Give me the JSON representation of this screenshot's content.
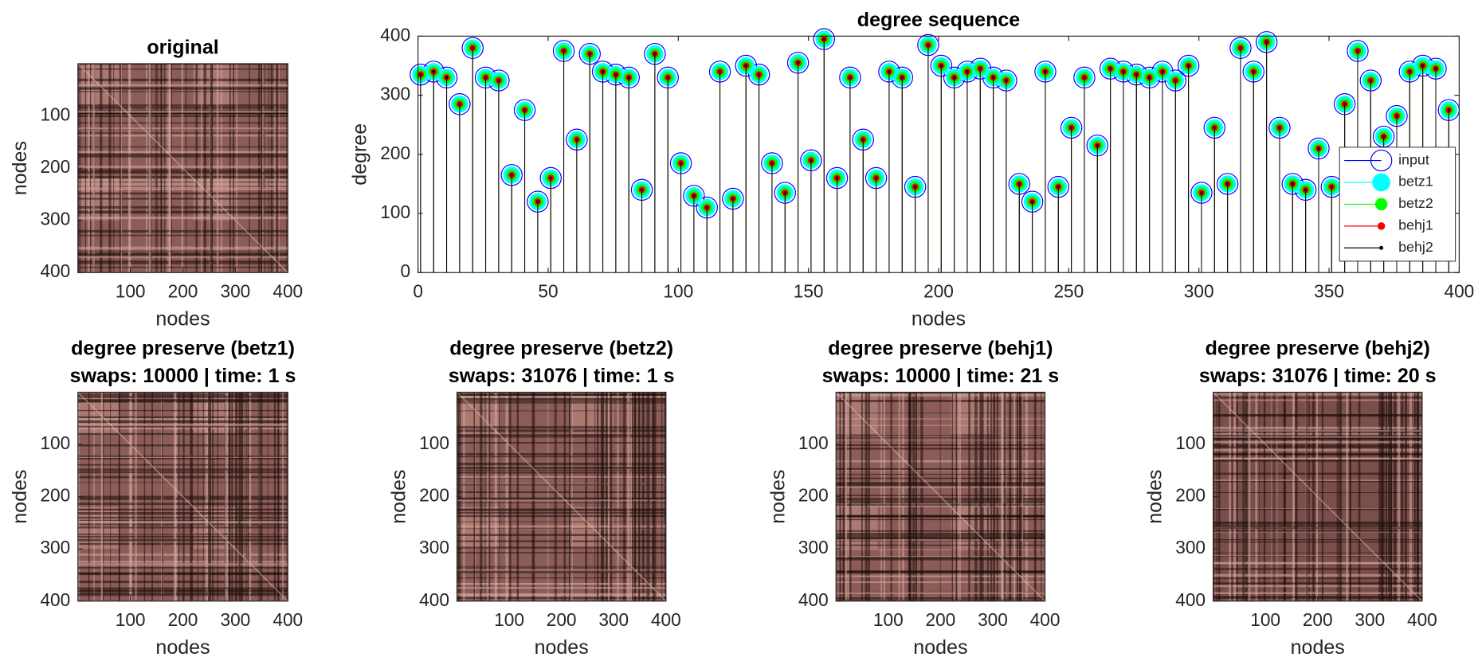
{
  "chart_data": [
    {
      "type": "image",
      "title": "original",
      "xlabel": "nodes",
      "ylabel": "nodes",
      "xlim": [
        0,
        400
      ],
      "ylim": [
        0,
        400
      ],
      "y_reversed": true,
      "xticks": [
        100,
        200,
        300,
        400
      ],
      "yticks": [
        100,
        200,
        300,
        400
      ]
    },
    {
      "type": "stem",
      "title": "degree sequence",
      "xlabel": "nodes",
      "ylabel": "degree",
      "xlim": [
        0,
        400
      ],
      "ylim": [
        0,
        400
      ],
      "xticks": [
        0,
        50,
        100,
        150,
        200,
        250,
        300,
        350,
        400
      ],
      "yticks": [
        0,
        100,
        200,
        300,
        400
      ],
      "legend_loc": "southeast",
      "x": [
        1,
        6,
        11,
        16,
        21,
        26,
        31,
        36,
        41,
        46,
        51,
        56,
        61,
        66,
        71,
        76,
        81,
        86,
        91,
        96,
        101,
        106,
        111,
        116,
        121,
        126,
        131,
        136,
        141,
        146,
        151,
        156,
        161,
        166,
        171,
        176,
        181,
        186,
        191,
        196,
        201,
        206,
        211,
        216,
        221,
        226,
        231,
        236,
        241,
        246,
        251,
        256,
        261,
        266,
        271,
        276,
        281,
        286,
        291,
        296,
        301,
        306,
        311,
        316,
        321,
        326,
        331,
        336,
        341,
        346,
        351,
        356,
        361,
        366,
        371,
        376,
        381,
        386,
        391,
        396
      ],
      "series": [
        {
          "name": "input",
          "color": "#0000ff",
          "values": [
            335,
            340,
            330,
            285,
            380,
            330,
            325,
            165,
            275,
            120,
            160,
            375,
            225,
            370,
            340,
            335,
            330,
            140,
            370,
            330,
            185,
            130,
            110,
            340,
            125,
            350,
            335,
            185,
            135,
            355,
            190,
            395,
            160,
            330,
            225,
            160,
            340,
            330,
            145,
            385,
            350,
            330,
            340,
            345,
            330,
            325,
            150,
            120,
            340,
            145,
            245,
            330,
            215,
            345,
            340,
            335,
            330,
            340,
            325,
            350,
            135,
            245,
            150,
            380,
            340,
            390,
            245,
            150,
            140,
            210,
            145,
            285,
            375,
            325,
            230,
            265,
            340,
            350,
            345,
            275
          ]
        },
        {
          "name": "betz1",
          "color": "#00ffff",
          "values": [
            335,
            340,
            330,
            285,
            380,
            330,
            325,
            165,
            275,
            120,
            160,
            375,
            225,
            370,
            340,
            335,
            330,
            140,
            370,
            330,
            185,
            130,
            110,
            340,
            125,
            350,
            335,
            185,
            135,
            355,
            190,
            395,
            160,
            330,
            225,
            160,
            340,
            330,
            145,
            385,
            350,
            330,
            340,
            345,
            330,
            325,
            150,
            120,
            340,
            145,
            245,
            330,
            215,
            345,
            340,
            335,
            330,
            340,
            325,
            350,
            135,
            245,
            150,
            380,
            340,
            390,
            245,
            150,
            140,
            210,
            145,
            285,
            375,
            325,
            230,
            265,
            340,
            350,
            345,
            275
          ]
        },
        {
          "name": "betz2",
          "color": "#00ff00",
          "values": [
            335,
            340,
            330,
            285,
            380,
            330,
            325,
            165,
            275,
            120,
            160,
            375,
            225,
            370,
            340,
            335,
            330,
            140,
            370,
            330,
            185,
            130,
            110,
            340,
            125,
            350,
            335,
            185,
            135,
            355,
            190,
            395,
            160,
            330,
            225,
            160,
            340,
            330,
            145,
            385,
            350,
            330,
            340,
            345,
            330,
            325,
            150,
            120,
            340,
            145,
            245,
            330,
            215,
            345,
            340,
            335,
            330,
            340,
            325,
            350,
            135,
            245,
            150,
            380,
            340,
            390,
            245,
            150,
            140,
            210,
            145,
            285,
            375,
            325,
            230,
            265,
            340,
            350,
            345,
            275
          ]
        },
        {
          "name": "behj1",
          "color": "#ff0000",
          "values": [
            335,
            340,
            330,
            285,
            380,
            330,
            325,
            165,
            275,
            120,
            160,
            375,
            225,
            370,
            340,
            335,
            330,
            140,
            370,
            330,
            185,
            130,
            110,
            340,
            125,
            350,
            335,
            185,
            135,
            355,
            190,
            395,
            160,
            330,
            225,
            160,
            340,
            330,
            145,
            385,
            350,
            330,
            340,
            345,
            330,
            325,
            150,
            120,
            340,
            145,
            245,
            330,
            215,
            345,
            340,
            335,
            330,
            340,
            325,
            350,
            135,
            245,
            150,
            380,
            340,
            390,
            245,
            150,
            140,
            210,
            145,
            285,
            375,
            325,
            230,
            265,
            340,
            350,
            345,
            275
          ]
        },
        {
          "name": "behj2",
          "color": "#000000",
          "values": [
            335,
            340,
            330,
            285,
            380,
            330,
            325,
            165,
            275,
            120,
            160,
            375,
            225,
            370,
            340,
            335,
            330,
            140,
            370,
            330,
            185,
            130,
            110,
            340,
            125,
            350,
            335,
            185,
            135,
            355,
            190,
            395,
            160,
            330,
            225,
            160,
            340,
            330,
            145,
            385,
            350,
            330,
            340,
            345,
            330,
            325,
            150,
            120,
            340,
            145,
            245,
            330,
            215,
            345,
            340,
            335,
            330,
            340,
            325,
            350,
            135,
            245,
            150,
            380,
            340,
            390,
            245,
            150,
            140,
            210,
            145,
            285,
            375,
            325,
            230,
            265,
            340,
            350,
            345,
            275
          ]
        }
      ]
    },
    {
      "type": "image",
      "title": [
        "degree preserve (betz1)",
        "swaps: 10000 | time: 1 s"
      ],
      "xlabel": "nodes",
      "ylabel": "nodes",
      "xlim": [
        0,
        400
      ],
      "ylim": [
        0,
        400
      ],
      "y_reversed": true,
      "xticks": [
        100,
        200,
        300,
        400
      ],
      "yticks": [
        100,
        200,
        300,
        400
      ]
    },
    {
      "type": "image",
      "title": [
        "degree preserve (betz2)",
        "swaps: 31076 | time: 1 s"
      ],
      "xlabel": "nodes",
      "ylabel": "nodes",
      "xlim": [
        0,
        400
      ],
      "ylim": [
        0,
        400
      ],
      "y_reversed": true,
      "xticks": [
        100,
        200,
        300,
        400
      ],
      "yticks": [
        100,
        200,
        300,
        400
      ]
    },
    {
      "type": "image",
      "title": [
        "degree preserve (behj1)",
        "swaps: 10000 | time: 21 s"
      ],
      "xlabel": "nodes",
      "ylabel": "nodes",
      "xlim": [
        0,
        400
      ],
      "ylim": [
        0,
        400
      ],
      "y_reversed": true,
      "xticks": [
        100,
        200,
        300,
        400
      ],
      "yticks": [
        100,
        200,
        300,
        400
      ]
    },
    {
      "type": "image",
      "title": [
        "degree preserve (behj2)",
        "swaps: 31076 | time: 20 s"
      ],
      "xlabel": "nodes",
      "ylabel": "nodes",
      "xlim": [
        0,
        400
      ],
      "ylim": [
        0,
        400
      ],
      "y_reversed": true,
      "xticks": [
        100,
        200,
        300,
        400
      ],
      "yticks": [
        100,
        200,
        300,
        400
      ]
    }
  ]
}
